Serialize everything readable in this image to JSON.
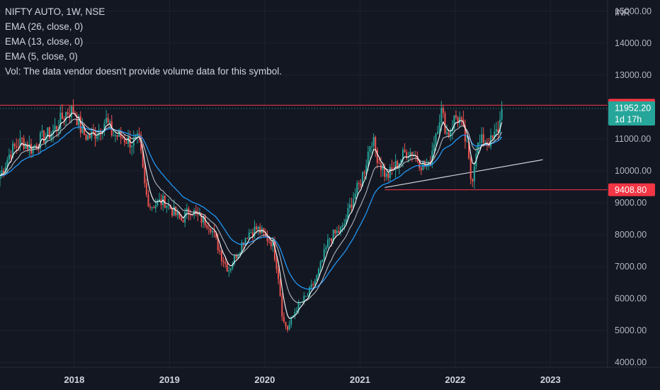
{
  "chart_data": {
    "type": "candlestick",
    "symbol": "NIFTY AUTO",
    "interval": "1W",
    "exchange": "NSE",
    "legend_title": "NIFTY AUTO, 1W, NSE",
    "indicators": [
      {
        "name": "EMA (26, close, 0)",
        "color": "#2196f3"
      },
      {
        "name": "EMA (13, close, 0)",
        "color": "#d1d4dc"
      },
      {
        "name": "EMA (5, close, 0)",
        "color": "#ffffff"
      }
    ],
    "volume_note": "Vol: The data vendor doesn't provide volume data for this symbol.",
    "currency": "INR",
    "y_ticks": [
      "15000.00",
      "14000.00",
      "13000.00",
      "11000.00",
      "10000.00",
      "9000.00",
      "8000.00",
      "7000.00",
      "6000.00",
      "5000.00",
      "4000.00"
    ],
    "y_tick_values": [
      15000,
      14000,
      13000,
      11000,
      10000,
      9000,
      8000,
      7000,
      6000,
      5000,
      4000
    ],
    "ylim": [
      3850,
      15350
    ],
    "x_ticks": [
      "2018",
      "2019",
      "2020",
      "2021",
      "2022",
      "2023"
    ],
    "x_tick_values": [
      2018.0,
      2019.0,
      2020.0,
      2021.0,
      2022.0,
      2023.0
    ],
    "xlim": [
      2017.22,
      2023.6
    ],
    "up_color": "#26a69a",
    "down_color": "#ef5350",
    "price_path": [
      [
        2017.22,
        9850
      ],
      [
        2017.33,
        10600
      ],
      [
        2017.45,
        10950
      ],
      [
        2017.55,
        10700
      ],
      [
        2017.65,
        11000
      ],
      [
        2017.78,
        11250
      ],
      [
        2017.92,
        11850
      ],
      [
        2018.0,
        11900
      ],
      [
        2018.08,
        11200
      ],
      [
        2018.15,
        11050
      ],
      [
        2018.25,
        11250
      ],
      [
        2018.33,
        11600
      ],
      [
        2018.4,
        11150
      ],
      [
        2018.5,
        11050
      ],
      [
        2018.6,
        10900
      ],
      [
        2018.68,
        10950
      ],
      [
        2018.75,
        9300
      ],
      [
        2018.8,
        8900
      ],
      [
        2018.88,
        9000
      ],
      [
        2018.95,
        9050
      ],
      [
        2019.03,
        8750
      ],
      [
        2019.12,
        8450
      ],
      [
        2019.22,
        8800
      ],
      [
        2019.32,
        8500
      ],
      [
        2019.42,
        8350
      ],
      [
        2019.55,
        7300
      ],
      [
        2019.62,
        6900
      ],
      [
        2019.72,
        7500
      ],
      [
        2019.82,
        8050
      ],
      [
        2019.92,
        8200
      ],
      [
        2020.0,
        7950
      ],
      [
        2020.08,
        7750
      ],
      [
        2020.14,
        6800
      ],
      [
        2020.19,
        5300
      ],
      [
        2020.24,
        5050
      ],
      [
        2020.33,
        5700
      ],
      [
        2020.45,
        6100
      ],
      [
        2020.55,
        6700
      ],
      [
        2020.68,
        7900
      ],
      [
        2020.82,
        8200
      ],
      [
        2020.92,
        9100
      ],
      [
        2021.0,
        9600
      ],
      [
        2021.05,
        10100
      ],
      [
        2021.12,
        11050
      ],
      [
        2021.2,
        10300
      ],
      [
        2021.28,
        9800
      ],
      [
        2021.36,
        10100
      ],
      [
        2021.48,
        10600
      ],
      [
        2021.55,
        10600
      ],
      [
        2021.65,
        10200
      ],
      [
        2021.72,
        10100
      ],
      [
        2021.78,
        11000
      ],
      [
        2021.85,
        11900
      ],
      [
        2021.92,
        11100
      ],
      [
        2022.0,
        11700
      ],
      [
        2022.05,
        11600
      ],
      [
        2022.12,
        10800
      ],
      [
        2022.17,
        9600
      ],
      [
        2022.22,
        10700
      ],
      [
        2022.3,
        11000
      ],
      [
        2022.38,
        10900
      ],
      [
        2022.45,
        11300
      ],
      [
        2022.5,
        11950
      ]
    ],
    "levels": [
      {
        "label": "12054.75",
        "value": 12054.75,
        "color": "#f23645"
      },
      {
        "label": "9408.80",
        "value": 9408.8,
        "color": "#f23645"
      }
    ],
    "current_price": {
      "label": "11952.20",
      "value": 11952.2,
      "countdown": "1d 17h",
      "color": "#26a69a"
    },
    "trendline": {
      "from": [
        2021.26,
        9480
      ],
      "to": [
        2022.92,
        10350
      ],
      "color": "#d1d4dc"
    }
  }
}
